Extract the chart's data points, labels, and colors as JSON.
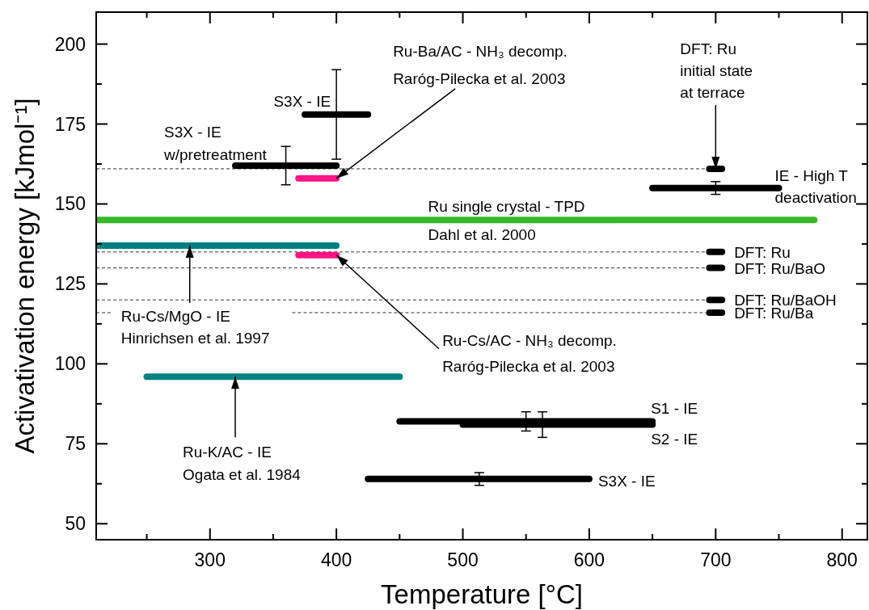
{
  "chart_data": {
    "type": "line",
    "xlabel": "Temperature [°C]",
    "ylabel": "Activativation energy [kJmol⁻¹]",
    "xlim": [
      210,
      820
    ],
    "ylim": [
      45,
      210
    ],
    "xticks": [
      {
        "value": 250,
        "label": null
      },
      300,
      {
        "value": 350,
        "label": null
      },
      400,
      {
        "value": 450,
        "label": null
      },
      500,
      {
        "value": 550,
        "label": null
      },
      600,
      {
        "value": 650,
        "label": null
      },
      700,
      {
        "value": 750,
        "label": null
      },
      800
    ],
    "yticks": [
      50,
      {
        "value": 62.5,
        "label": null
      },
      75,
      {
        "value": 87.5,
        "label": null
      },
      100,
      {
        "value": 112.5,
        "label": null
      },
      125,
      {
        "value": 137.5,
        "label": null
      },
      150,
      {
        "value": 162.5,
        "label": null
      },
      175,
      {
        "value": 187.5,
        "label": null
      },
      200
    ],
    "grid": false,
    "marker": "none",
    "series": [
      {
        "color": "#333333",
        "line_style": "dashed",
        "x": [
          210,
          695
        ],
        "values": [
          161,
          161
        ]
      },
      {
        "color": "#333333",
        "line_style": "dashed",
        "x": [
          210,
          695
        ],
        "values": [
          135,
          135
        ]
      },
      {
        "color": "#333333",
        "line_style": "dashed",
        "x": [
          210,
          695
        ],
        "values": [
          130,
          130
        ]
      },
      {
        "color": "#333333",
        "line_style": "dashed",
        "x": [
          210,
          695
        ],
        "values": [
          120,
          120
        ]
      },
      {
        "color": "#333333",
        "line_style": "dashed",
        "x": [
          210,
          222
        ],
        "values": [
          116,
          116
        ]
      },
      {
        "color": "#333333",
        "line_style": "dashed",
        "x": [
          365,
          695
        ],
        "values": [
          116,
          116
        ]
      },
      {
        "color": "#000000",
        "line_style": "solid",
        "x": [
          375,
          400,
          425
        ],
        "values": [
          178,
          178,
          178
        ],
        "errors": [
          null,
          [
            164,
            192
          ],
          null
        ]
      },
      {
        "color": "#000000",
        "line_style": "solid",
        "x": [
          320,
          360,
          400
        ],
        "values": [
          162,
          162,
          162
        ],
        "errors": [
          null,
          [
            156,
            168
          ],
          null
        ]
      },
      {
        "color": "#ff1485",
        "line_style": "solid",
        "x": [
          370,
          400
        ],
        "values": [
          158,
          158
        ]
      },
      {
        "color": "#36b82b",
        "line_style": "solid",
        "x": [
          210,
          778
        ],
        "values": [
          145,
          145
        ]
      },
      {
        "color": "#008080",
        "line_style": "solid",
        "x": [
          210,
          400
        ],
        "values": [
          137,
          137
        ]
      },
      {
        "color": "#ff1485",
        "line_style": "solid",
        "x": [
          370,
          400
        ],
        "values": [
          134,
          134
        ]
      },
      {
        "color": "#008080",
        "line_style": "solid",
        "x": [
          250,
          450
        ],
        "values": [
          96,
          96
        ]
      },
      {
        "color": "#000000",
        "line_style": "solid",
        "x": [
          450,
          550,
          650
        ],
        "values": [
          82,
          82,
          82
        ],
        "errors": [
          null,
          [
            79,
            85
          ],
          null
        ]
      },
      {
        "color": "#000000",
        "line_style": "solid",
        "x": [
          500,
          563,
          650
        ],
        "values": [
          81,
          81,
          81
        ],
        "errors": [
          null,
          [
            77,
            85
          ],
          null
        ]
      },
      {
        "color": "#000000",
        "line_style": "solid",
        "x": [
          425,
          513,
          600
        ],
        "values": [
          64,
          64,
          64
        ],
        "errors": [
          null,
          [
            62,
            66
          ],
          null
        ]
      },
      {
        "color": "#000000",
        "line_style": "solid",
        "x": [
          650,
          700,
          750
        ],
        "values": [
          155,
          155,
          155
        ],
        "errors": [
          null,
          [
            153,
            157
          ],
          null
        ]
      },
      {
        "color": "#000000",
        "line_style": "solid",
        "x": [
          695,
          705
        ],
        "values": [
          161,
          161
        ]
      },
      {
        "color": "#000000",
        "line_style": "solid",
        "x": [
          695,
          705
        ],
        "values": [
          135,
          135
        ]
      },
      {
        "color": "#000000",
        "line_style": "solid",
        "x": [
          695,
          705
        ],
        "values": [
          130,
          130
        ]
      },
      {
        "color": "#000000",
        "line_style": "solid",
        "x": [
          695,
          705
        ],
        "values": [
          120,
          120
        ]
      },
      {
        "color": "#000000",
        "line_style": "solid",
        "x": [
          695,
          705
        ],
        "values": [
          116,
          116
        ]
      }
    ],
    "annotations": [
      {
        "text": "S3X - IE",
        "x": 400,
        "y": 178
      },
      {
        "text": "S3X - IE\nw/pretreatment",
        "x": 320,
        "y": 162
      },
      {
        "text": "Ru-Ba/AC - NH₃ decomp.\nRaróg-Pilecka et al. 2003",
        "x": 400,
        "y": 158
      },
      {
        "text": "DFT: Ru\ninitial state\nat terrace",
        "x": 700,
        "y": 161
      },
      {
        "text": "IE - High T\ndeactivation",
        "x": 750,
        "y": 155
      },
      {
        "text": "Ru single crystal - TPD\nDahl et al. 2000",
        "x": 470,
        "y": 145
      },
      {
        "text": "Ru-Cs/MgO - IE\nHinrichsen et al. 1997",
        "x": 284,
        "y": 137
      },
      {
        "text": "Ru-Cs/AC - NH₃ decomp.\nRaróg-Pilecka et al. 2003",
        "x": 400,
        "y": 134
      },
      {
        "text": "Ru-K/AC - IE\nOgata et al. 1984",
        "x": 320,
        "y": 96
      },
      {
        "text": "S1 - IE",
        "x": 650,
        "y": 82
      },
      {
        "text": "S2 - IE",
        "x": 650,
        "y": 81
      },
      {
        "text": "S3X - IE",
        "x": 600,
        "y": 64
      },
      {
        "text": "DFT: Ru",
        "x": 705,
        "y": 135
      },
      {
        "text": "DFT: Ru/BaO",
        "x": 705,
        "y": 130
      },
      {
        "text": "DFT: Ru/BaOH",
        "x": 705,
        "y": 120
      },
      {
        "text": "DFT: Ru/Ba",
        "x": 705,
        "y": 116
      }
    ]
  }
}
